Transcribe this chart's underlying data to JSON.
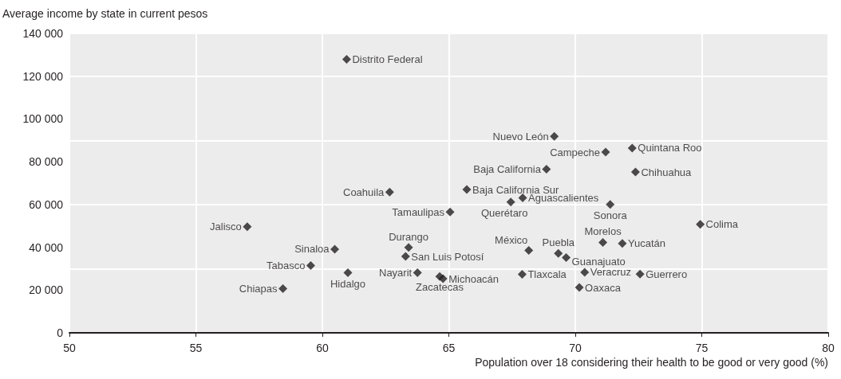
{
  "chart_data": {
    "type": "scatter",
    "xlabel": "Population over 18 considering their health to be good or very good (%)",
    "ylabel": "Average income by state in current pesos",
    "x": [
      60.96,
      69.17,
      71.2,
      72.25,
      72.38,
      68.86,
      65.71,
      62.66,
      67.92,
      67.45,
      65.05,
      71.38,
      74.94,
      57.03,
      71.09,
      71.86,
      68.16,
      69.33,
      69.64,
      63.41,
      60.49,
      63.29,
      59.54,
      61.01,
      63.76,
      64.77,
      64.64,
      67.9,
      70.37,
      72.56,
      70.16,
      58.44
    ],
    "series": [
      {
        "color": "#231f20",
        "values": [
          127900,
          91900,
          84500,
          86400,
          75200,
          76500,
          67000,
          65800,
          63100,
          61200,
          56500,
          60000,
          50700,
          49600,
          42300,
          41800,
          38500,
          37100,
          35200,
          39900,
          39100,
          35700,
          31500,
          28100,
          28100,
          25300,
          26300,
          27400,
          28300,
          27500,
          21200,
          20700
        ]
      }
    ],
    "annotations": [
      {
        "text": "Distrito Federal",
        "x": 60.96,
        "y": 127900
      },
      {
        "text": "Nuevo León",
        "x": 69.17,
        "y": 91900
      },
      {
        "text": "Campeche",
        "x": 71.2,
        "y": 84500
      },
      {
        "text": "Quintana Roo",
        "x": 72.25,
        "y": 86400
      },
      {
        "text": "Chihuahua",
        "x": 72.38,
        "y": 75200
      },
      {
        "text": "Baja California",
        "x": 68.86,
        "y": 76500
      },
      {
        "text": "Baja California Sur",
        "x": 65.71,
        "y": 67000
      },
      {
        "text": "Coahuila",
        "x": 62.66,
        "y": 65800
      },
      {
        "text": "Aguascalientes",
        "x": 67.92,
        "y": 63100
      },
      {
        "text": "Querétaro",
        "x": 67.45,
        "y": 61200
      },
      {
        "text": "Tamaulipas",
        "x": 65.05,
        "y": 56500
      },
      {
        "text": "Sonora",
        "x": 71.38,
        "y": 60000
      },
      {
        "text": "Colima",
        "x": 74.94,
        "y": 50700
      },
      {
        "text": "Jalisco",
        "x": 57.03,
        "y": 49600
      },
      {
        "text": "Morelos",
        "x": 71.09,
        "y": 42300
      },
      {
        "text": "Yucatán",
        "x": 71.86,
        "y": 41800
      },
      {
        "text": "México",
        "x": 68.16,
        "y": 38500
      },
      {
        "text": "Puebla",
        "x": 69.33,
        "y": 37100
      },
      {
        "text": "Guanajuato",
        "x": 69.64,
        "y": 35200
      },
      {
        "text": "Durango",
        "x": 63.41,
        "y": 39900
      },
      {
        "text": "Sinaloa",
        "x": 60.49,
        "y": 39100
      },
      {
        "text": "San Luis Potosí",
        "x": 63.29,
        "y": 35700
      },
      {
        "text": "Tabasco",
        "x": 59.54,
        "y": 31500
      },
      {
        "text": "Hidalgo",
        "x": 61.01,
        "y": 28100
      },
      {
        "text": "Nayarit",
        "x": 63.76,
        "y": 28100
      },
      {
        "text": "Michoacán",
        "x": 64.77,
        "y": 25300
      },
      {
        "text": "Zacatecas",
        "x": 64.64,
        "y": 26300
      },
      {
        "text": "Tlaxcala",
        "x": 67.9,
        "y": 27400
      },
      {
        "text": "Veracruz",
        "x": 70.37,
        "y": 28300
      },
      {
        "text": "Guerrero",
        "x": 72.56,
        "y": 27500
      },
      {
        "text": "Oaxaca",
        "x": 70.16,
        "y": 21200
      },
      {
        "text": "Chiapas",
        "x": 58.44,
        "y": 20700
      }
    ],
    "xlim": [
      50,
      80
    ],
    "xticks": [
      50,
      55,
      60,
      65,
      70,
      75,
      80
    ],
    "ylim": [
      0,
      140000
    ],
    "yticks": [
      0,
      {
        "value": 20000,
        "label": "20 000"
      },
      {
        "value": 40000,
        "label": "40 000"
      },
      {
        "value": 60000,
        "label": "60 000"
      },
      {
        "value": 80000,
        "label": "80 000"
      },
      {
        "value": 100000,
        "label": "100 000"
      },
      {
        "value": 120000,
        "label": "120 000"
      },
      {
        "value": 140000,
        "label": "140 000"
      }
    ],
    "grid": true,
    "marker": "diamond"
  }
}
